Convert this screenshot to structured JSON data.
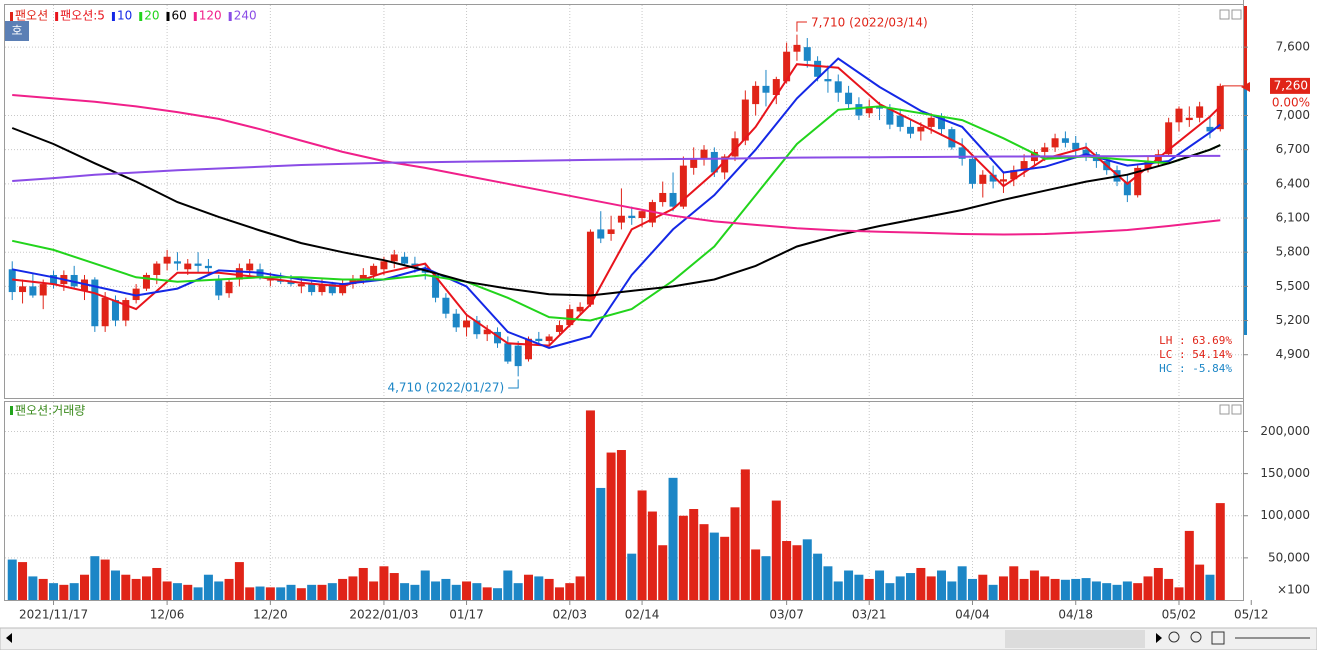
{
  "chart_data": [
    {
      "type": "candlestick",
      "name": "팬오션",
      "corner_button": "호",
      "up_color": "#e02418",
      "down_color": "#1c86c6",
      "xlim": [
        -0.7,
        119.2
      ],
      "ylim": [
        4520,
        7970
      ],
      "yticks": [
        {
          "value": 7600,
          "label": "7,600"
        },
        {
          "value": 7000,
          "label": "7,000"
        },
        {
          "value": 6700,
          "label": "6,700"
        },
        {
          "value": 6400,
          "label": "6,400"
        },
        {
          "value": 6100,
          "label": "6,100"
        },
        {
          "value": 5800,
          "label": "5,800"
        },
        {
          "value": 5500,
          "label": "5,500"
        },
        {
          "value": 5200,
          "label": "5,200"
        },
        {
          "value": 4900,
          "label": "4,900"
        }
      ],
      "grid": true,
      "open": [
        5650,
        5450,
        5500,
        5420,
        5600,
        5520,
        5600,
        5460,
        5560,
        5150,
        5380,
        5200,
        5380,
        5480,
        5600,
        5700,
        5720,
        5650,
        5700,
        5680,
        5560,
        5440,
        5560,
        5640,
        5650,
        5560,
        5560,
        5540,
        5500,
        5520,
        5450,
        5520,
        5440,
        5520,
        5560,
        5600,
        5650,
        5720,
        5760,
        5700,
        5640,
        5600,
        5400,
        5260,
        5140,
        5200,
        5080,
        5100,
        5000,
        4980,
        4860,
        5040,
        5020,
        5100,
        5160,
        5280,
        5340,
        6000,
        5960,
        6060,
        6120,
        6100,
        6060,
        6240,
        6320,
        6200,
        6540,
        6620,
        6680,
        6500,
        6640,
        6780,
        7100,
        7260,
        7180,
        7300,
        7560,
        7600,
        7480,
        7320,
        7300,
        7200,
        7100,
        7020,
        7080,
        7060,
        7000,
        6900,
        6860,
        6900,
        6980,
        6880,
        6720,
        6620,
        6400,
        6480,
        6420,
        6440,
        6520,
        6600,
        6680,
        6720,
        6800,
        6760,
        6700,
        6660,
        6600,
        6520,
        6420,
        6300,
        6540,
        6600,
        6660,
        6940,
        6960,
        6980,
        6900,
        6880
      ],
      "high": [
        5720,
        5560,
        5620,
        5560,
        5640,
        5640,
        5680,
        5600,
        5580,
        5450,
        5420,
        5400,
        5520,
        5620,
        5720,
        5820,
        5800,
        5740,
        5800,
        5740,
        5600,
        5560,
        5700,
        5740,
        5700,
        5620,
        5620,
        5600,
        5580,
        5560,
        5560,
        5540,
        5560,
        5600,
        5660,
        5700,
        5760,
        5820,
        5800,
        5760,
        5700,
        5620,
        5440,
        5300,
        5260,
        5240,
        5160,
        5140,
        5060,
        5020,
        5060,
        5100,
        5080,
        5200,
        5340,
        5360,
        6000,
        6160,
        6120,
        6360,
        6200,
        6180,
        6260,
        6420,
        6500,
        6640,
        6720,
        6740,
        6720,
        6660,
        6860,
        7220,
        7300,
        7400,
        7340,
        7640,
        7710,
        7680,
        7520,
        7440,
        7360,
        7260,
        7160,
        7140,
        7120,
        7100,
        7060,
        6960,
        6940,
        7020,
        7020,
        6900,
        6800,
        6660,
        6520,
        6560,
        6500,
        6560,
        6660,
        6700,
        6760,
        6840,
        6860,
        6820,
        6760,
        6680,
        6640,
        6560,
        6480,
        6560,
        6640,
        6700,
        6980,
        7080,
        7080,
        7120,
        7000,
        7280
      ],
      "low": [
        5380,
        5350,
        5400,
        5300,
        5480,
        5460,
        5480,
        5380,
        5100,
        5100,
        5150,
        5150,
        5350,
        5460,
        5520,
        5640,
        5640,
        5600,
        5620,
        5600,
        5380,
        5400,
        5500,
        5580,
        5560,
        5500,
        5520,
        5500,
        5440,
        5420,
        5420,
        5420,
        5420,
        5480,
        5520,
        5560,
        5600,
        5660,
        5680,
        5620,
        5560,
        5360,
        5220,
        5100,
        5060,
        5040,
        5020,
        4960,
        4820,
        4710,
        4840,
        4980,
        4980,
        5080,
        5140,
        5260,
        5320,
        5880,
        5900,
        6000,
        6040,
        6020,
        6020,
        6200,
        6160,
        6180,
        6480,
        6560,
        6460,
        6440,
        6600,
        6740,
        7000,
        7080,
        7100,
        7280,
        7480,
        7420,
        7300,
        7200,
        7120,
        7060,
        6960,
        6980,
        6960,
        6880,
        6860,
        6800,
        6780,
        6840,
        6820,
        6700,
        6560,
        6360,
        6280,
        6360,
        6320,
        6380,
        6460,
        6560,
        6600,
        6680,
        6720,
        6640,
        6600,
        6540,
        6480,
        6380,
        6240,
        6280,
        6500,
        6560,
        6640,
        6860,
        6900,
        6940,
        6800,
        6860
      ],
      "close": [
        5450,
        5500,
        5420,
        5520,
        5520,
        5600,
        5500,
        5560,
        5150,
        5400,
        5200,
        5380,
        5480,
        5600,
        5700,
        5760,
        5700,
        5700,
        5680,
        5660,
        5420,
        5540,
        5660,
        5700,
        5580,
        5560,
        5540,
        5520,
        5520,
        5450,
        5520,
        5440,
        5520,
        5560,
        5600,
        5680,
        5720,
        5780,
        5700,
        5660,
        5620,
        5400,
        5260,
        5140,
        5200,
        5080,
        5120,
        5000,
        4840,
        4800,
        5040,
        5020,
        5060,
        5160,
        5300,
        5320,
        5980,
        5920,
        6000,
        6120,
        6100,
        6160,
        6240,
        6320,
        6200,
        6560,
        6620,
        6700,
        6500,
        6640,
        6800,
        7140,
        7260,
        7200,
        7320,
        7560,
        7620,
        7480,
        7340,
        7300,
        7200,
        7100,
        7000,
        7080,
        7060,
        6920,
        6900,
        6840,
        6900,
        6980,
        6880,
        6720,
        6620,
        6400,
        6480,
        6420,
        6440,
        6520,
        6600,
        6680,
        6720,
        6800,
        6760,
        6700,
        6660,
        6600,
        6520,
        6420,
        6300,
        6540,
        6600,
        6660,
        6940,
        7060,
        6980,
        7080,
        6860,
        7260
      ],
      "series": [
        {
          "name": "팬오션:5",
          "color": "#e8141c",
          "x": [
            0,
            4,
            8,
            12,
            16,
            20,
            24,
            28,
            32,
            36,
            40,
            44,
            48,
            52,
            56,
            60,
            64,
            68,
            72,
            76,
            80,
            84,
            88,
            92,
            96,
            100,
            104,
            108,
            112,
            116,
            117
          ],
          "values": [
            5560,
            5520,
            5440,
            5300,
            5620,
            5620,
            5580,
            5530,
            5500,
            5620,
            5700,
            5250,
            5000,
            4980,
            5340,
            6000,
            6180,
            6500,
            6900,
            7450,
            7420,
            7100,
            6920,
            6740,
            6380,
            6620,
            6720,
            6400,
            6700,
            6990,
            7080
          ]
        },
        {
          "name": "10",
          "color": "#1428e6",
          "x": [
            0,
            4,
            8,
            12,
            16,
            20,
            24,
            28,
            32,
            36,
            40,
            44,
            48,
            52,
            56,
            60,
            64,
            68,
            72,
            76,
            80,
            84,
            88,
            92,
            96,
            100,
            104,
            108,
            112,
            116,
            117
          ],
          "values": [
            5650,
            5580,
            5500,
            5420,
            5480,
            5640,
            5620,
            5560,
            5520,
            5560,
            5660,
            5500,
            5100,
            4960,
            5060,
            5600,
            6000,
            6300,
            6700,
            7150,
            7500,
            7250,
            7040,
            6900,
            6500,
            6550,
            6660,
            6560,
            6600,
            6850,
            6920
          ]
        },
        {
          "name": "20",
          "color": "#22d41c",
          "x": [
            0,
            4,
            8,
            12,
            16,
            20,
            24,
            28,
            32,
            36,
            40,
            44,
            48,
            52,
            56,
            60,
            64,
            68,
            72,
            76,
            80,
            84,
            88,
            92,
            96,
            100,
            104,
            108,
            112,
            116,
            117
          ],
          "values": [
            5900,
            5820,
            5700,
            5580,
            5540,
            5560,
            5580,
            5580,
            5560,
            5560,
            5600,
            5540,
            5400,
            5230,
            5200,
            5300,
            5550,
            5850,
            6300,
            6750,
            7050,
            7080,
            7020,
            6960,
            6800,
            6620,
            6640,
            6610,
            6580,
            6700,
            6740
          ]
        },
        {
          "name": "60",
          "color": "#000000",
          "x": [
            0,
            4,
            8,
            12,
            16,
            20,
            24,
            28,
            32,
            36,
            40,
            44,
            48,
            52,
            56,
            60,
            64,
            68,
            72,
            76,
            80,
            84,
            88,
            92,
            96,
            100,
            104,
            108,
            112,
            116,
            117
          ],
          "values": [
            6890,
            6750,
            6580,
            6420,
            6240,
            6110,
            5990,
            5880,
            5800,
            5730,
            5640,
            5540,
            5480,
            5430,
            5420,
            5460,
            5500,
            5560,
            5680,
            5850,
            5950,
            6030,
            6100,
            6170,
            6260,
            6340,
            6420,
            6480,
            6580,
            6700,
            6740
          ]
        },
        {
          "name": "120",
          "color": "#f0208a",
          "x": [
            0,
            4,
            8,
            12,
            16,
            20,
            24,
            28,
            32,
            36,
            40,
            44,
            48,
            52,
            56,
            60,
            64,
            68,
            72,
            76,
            80,
            84,
            88,
            92,
            96,
            100,
            104,
            108,
            112,
            116,
            117
          ],
          "values": [
            7180,
            7150,
            7120,
            7080,
            7030,
            6970,
            6880,
            6780,
            6680,
            6600,
            6540,
            6470,
            6400,
            6330,
            6260,
            6190,
            6120,
            6070,
            6040,
            6010,
            5990,
            5980,
            5970,
            5960,
            5955,
            5960,
            5975,
            5995,
            6030,
            6070,
            6080
          ]
        },
        {
          "name": "240",
          "color": "#8a4ce6",
          "x": [
            0,
            4,
            8,
            12,
            16,
            20,
            24,
            28,
            32,
            36,
            40,
            44,
            48,
            52,
            56,
            60,
            64,
            68,
            72,
            76,
            80,
            84,
            88,
            92,
            96,
            100,
            104,
            108,
            112,
            116,
            117
          ],
          "values": [
            6425,
            6450,
            6480,
            6500,
            6520,
            6535,
            6550,
            6565,
            6575,
            6585,
            6590,
            6595,
            6600,
            6605,
            6610,
            6615,
            6618,
            6620,
            6625,
            6630,
            6632,
            6634,
            6636,
            6638,
            6640,
            6641,
            6642,
            6643,
            6644,
            6645,
            6645
          ]
        }
      ],
      "annotations": [
        {
          "text": "7,710 (2022/03/14)",
          "index": 76,
          "value": 7710
        },
        {
          "text": "4,710 (2022/01/27)",
          "index": 49,
          "value": 4710
        }
      ],
      "last_label": {
        "value": 7260,
        "label": "7,260"
      },
      "change_label": "0.00%",
      "stats": [
        "LH : 63.69%",
        "LC : 54.14%",
        "HC : -5.84%"
      ],
      "stats_colors": [
        "#e02418",
        "#e02418",
        "#1c86c6"
      ]
    },
    {
      "type": "bar",
      "name": "팬오션:거래량",
      "unit": "×100",
      "xlim": [
        -0.7,
        119.2
      ],
      "ylim": [
        0,
        235000
      ],
      "yticks": [
        {
          "value": 200000,
          "label": "200,000"
        },
        {
          "value": 150000,
          "label": "150,000"
        },
        {
          "value": 100000,
          "label": "100,000"
        },
        {
          "value": 50000,
          "label": "50,000"
        }
      ],
      "xticks": [
        {
          "value": 4,
          "label": "2021/11/17"
        },
        {
          "value": 15,
          "label": "12/06"
        },
        {
          "value": 25,
          "label": "12/20"
        },
        {
          "value": 36,
          "label": "2022/01/03"
        },
        {
          "value": 44,
          "label": "01/17"
        },
        {
          "value": 54,
          "label": "02/03"
        },
        {
          "value": 61,
          "label": "02/14"
        },
        {
          "value": 75,
          "label": "03/07"
        },
        {
          "value": 83,
          "label": "03/21"
        },
        {
          "value": 93,
          "label": "04/04"
        },
        {
          "value": 103,
          "label": "04/18"
        },
        {
          "value": 113,
          "label": "05/02"
        },
        {
          "value": 120,
          "label": "05/12"
        }
      ],
      "values": [
        48000,
        45000,
        28000,
        25000,
        20000,
        18000,
        20000,
        30000,
        52000,
        48000,
        35000,
        30000,
        25000,
        28000,
        38000,
        22000,
        20000,
        18000,
        15000,
        30000,
        22000,
        25000,
        45000,
        15000,
        16000,
        15000,
        15000,
        18000,
        14000,
        18000,
        18000,
        20000,
        25000,
        28000,
        38000,
        22000,
        40000,
        32000,
        20000,
        18000,
        35000,
        22000,
        25000,
        18000,
        22000,
        20000,
        15000,
        14000,
        35000,
        20000,
        30000,
        28000,
        25000,
        15000,
        20000,
        28000,
        225000,
        133000,
        175000,
        178000,
        55000,
        130000,
        105000,
        65000,
        145000,
        100000,
        108000,
        90000,
        80000,
        75000,
        110000,
        155000,
        60000,
        52000,
        118000,
        70000,
        65000,
        72000,
        55000,
        40000,
        22000,
        35000,
        30000,
        25000,
        35000,
        20000,
        28000,
        32000,
        38000,
        28000,
        35000,
        22000,
        40000,
        25000,
        30000,
        18000,
        28000,
        40000,
        25000,
        35000,
        28000,
        25000,
        24000,
        25000,
        26000,
        22000,
        20000,
        18000,
        22000,
        20000,
        28000,
        38000,
        25000,
        15000,
        82000,
        42000,
        30000,
        115000
      ]
    }
  ]
}
